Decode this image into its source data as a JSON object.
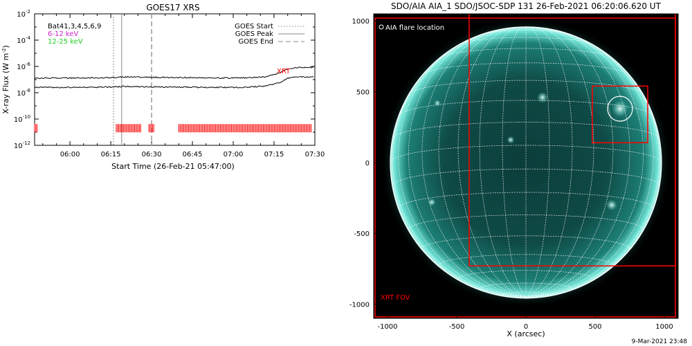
{
  "chart_data": [
    {
      "type": "line",
      "title": "GOES17 XRS",
      "xlabel": "Start Time (26-Feb-21 05:47:00)",
      "ylabel": "X-ray Flux (W m",
      "ylabel_sup": "-2",
      "ylabel_close": ")",
      "yscale": "log",
      "ylim": [
        1e-12,
        0.01
      ],
      "xlim": [
        "05:47",
        "07:30"
      ],
      "x_ticks": [
        "06:00",
        "06:15",
        "06:30",
        "06:45",
        "07:00",
        "07:15",
        "07:30"
      ],
      "y_ticks": [
        {
          "base": "10",
          "exp": "-2",
          "v": -2
        },
        {
          "base": "10",
          "exp": "-4",
          "v": -4
        },
        {
          "base": "10",
          "exp": "-6",
          "v": -6
        },
        {
          "base": "10",
          "exp": "-8",
          "v": -8
        },
        {
          "base": "10",
          "exp": "-10",
          "v": -10
        },
        {
          "base": "10",
          "exp": "-12",
          "v": -12
        }
      ],
      "series": [
        {
          "name": "",
          "color": "#000000",
          "x": [
            "05:47",
            "06:00",
            "06:15",
            "06:20",
            "06:30",
            "06:45",
            "07:00",
            "07:05",
            "07:12",
            "07:17",
            "07:20",
            "07:24",
            "07:30"
          ],
          "y": [
            1.3e-07,
            1.3e-07,
            1.4e-07,
            1.6e-07,
            1.5e-07,
            1.4e-07,
            1.3e-07,
            1.35e-07,
            1.6e-07,
            3.2e-07,
            6.5e-07,
            8.5e-07,
            8.5e-07
          ]
        },
        {
          "name": "",
          "color": "#000000",
          "x": [
            "05:47",
            "06:00",
            "06:15",
            "06:20",
            "06:30",
            "06:45",
            "07:00",
            "07:05",
            "07:12",
            "07:17",
            "07:20",
            "07:24",
            "07:30"
          ],
          "y": [
            2.6e-08,
            2.5e-08,
            2.7e-08,
            3e-08,
            2.8e-08,
            2.6e-08,
            2.5e-08,
            2.6e-08,
            3.2e-08,
            6e-08,
            1.3e-07,
            1.6e-07,
            1.6e-07
          ]
        }
      ],
      "legend_left": [
        {
          "text": "Bat41,3,4,5,6,9",
          "color": "#000000"
        },
        {
          "text": "6-12 keV",
          "color": "#cc22cc"
        },
        {
          "text": "12-25 keV",
          "color": "#22cc22"
        }
      ],
      "legend_right": [
        {
          "text": "GOES Start",
          "style": "dotted"
        },
        {
          "text": "GOES Peak",
          "style": "solid"
        },
        {
          "text": "GOES End",
          "style": "dashed"
        }
      ],
      "event_lines": [
        {
          "x": "06:16",
          "style": "dotted"
        },
        {
          "x": "06:19",
          "style": "solid"
        },
        {
          "x": "06:30",
          "style": "dashed"
        }
      ],
      "xrt_label": "XRT",
      "xrt_color": "#ff0000",
      "xrt_flux": 2e-11,
      "xrt_segments": [
        [
          "05:47",
          "05:48"
        ],
        [
          "06:17",
          "06:26"
        ],
        [
          "06:29",
          "06:31"
        ],
        [
          "06:40",
          "07:29"
        ]
      ]
    },
    {
      "type": "image",
      "title": "SDO/AIA AIA_1 SDO/JSOC-SDP 131 26-Feb-2021 06:20:06.620 UT",
      "xlabel": "X (arcsec)",
      "xlim": [
        -1100,
        1100
      ],
      "ylim": [
        -1100,
        1050
      ],
      "x_ticks": [
        -1000,
        -500,
        0,
        500,
        1000
      ],
      "y_ticks": [
        1000,
        500,
        0,
        -500,
        -1000
      ],
      "legend": "AIA flare location",
      "fov_label": "XRT FOV",
      "fov_color": "#ff0000",
      "fov_boxes": [
        {
          "x0": -1090,
          "x1": 1080,
          "y0": -1090,
          "y1": 1020
        },
        {
          "x0": -410,
          "x1": 1080,
          "y0": -730,
          "y1": 1090
        },
        {
          "x0": 480,
          "x1": 880,
          "y0": 140,
          "y1": 540
        }
      ],
      "flare_location": {
        "x": 680,
        "y": 380
      },
      "solar_radius": 980,
      "grid": true
    }
  ],
  "footer_date": "9-Mar-2021 23:48"
}
